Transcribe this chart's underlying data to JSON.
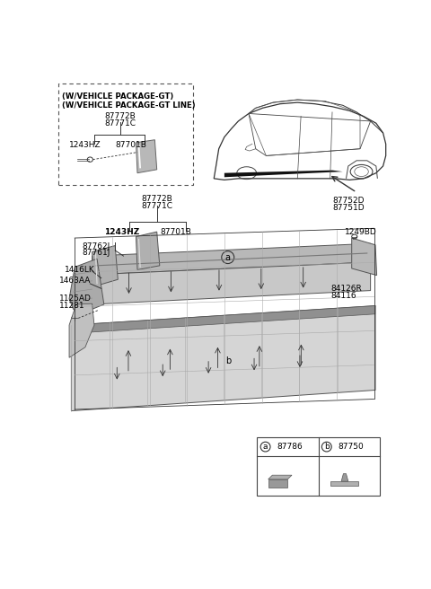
{
  "bg_color": "#ffffff",
  "text_color": "#000000",
  "line_color": "#333333",
  "gray_light": "#d0d0d0",
  "gray_mid": "#aaaaaa",
  "gray_dark": "#808080",
  "parts": {
    "dashed_box": {
      "label_line1": "(W/VEHICLE PACKAGE-GT)",
      "label_line2": "(W/VEHICLE PACKAGE-GT LINE)",
      "p1": "87772B",
      "p2": "87771C",
      "p3": "1243HZ",
      "p4": "87701B"
    },
    "main": {
      "p1": "87772B",
      "p2": "87771C",
      "p3": "1243HZ",
      "p4": "87701B",
      "p5": "87762J",
      "p6": "87761J",
      "p7": "1416LK",
      "p8": "1463AA",
      "p9": "1125AD",
      "p10": "11281",
      "p11": "87752D",
      "p12": "87751D",
      "p13": "1249BD",
      "p14": "84126R",
      "p15": "84116"
    },
    "legend": {
      "a_num": "87786",
      "b_num": "87750"
    }
  }
}
